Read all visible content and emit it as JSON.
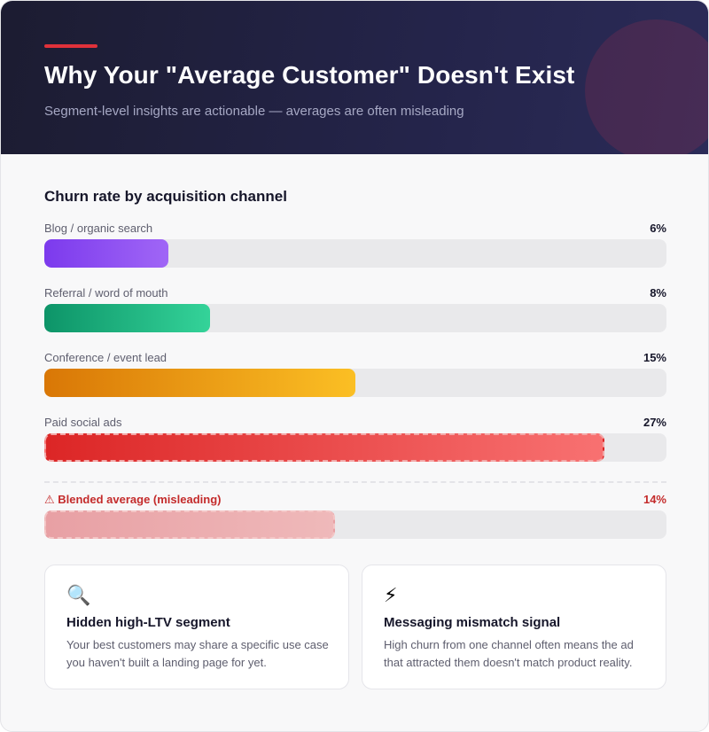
{
  "header": {
    "title": "Why Your \"Average Customer\" Doesn't Exist",
    "subtitle": "Segment-level insights are actionable — averages are often misleading"
  },
  "chart_data": {
    "type": "bar",
    "orientation": "horizontal",
    "title": "Churn rate by acquisition channel",
    "unit": "%",
    "xlim": [
      0,
      30
    ],
    "categories": [
      "Blog / organic search",
      "Referral / word of mouth",
      "Conference / event lead",
      "Paid social ads"
    ],
    "values": [
      6,
      8,
      15,
      27
    ],
    "value_labels": [
      "6%",
      "8%",
      "15%",
      "27%"
    ],
    "colors": [
      "#8b4ef0",
      "#1fb57f",
      "#eca21a",
      "#ec4a4a"
    ],
    "reference": {
      "label": "⚠ Blended average (misleading)",
      "value": 14,
      "value_label": "14%",
      "color": "#eab0b3"
    }
  },
  "insights": [
    {
      "icon": "🔍",
      "icon_name": "magnifier-icon",
      "title": "Hidden high-LTV segment",
      "body": "Your best customers may share a specific use case you haven't built a landing page for yet."
    },
    {
      "icon": "⚡",
      "icon_name": "lightning-icon",
      "title": "Messaging mismatch signal",
      "body": "High churn from one channel often means the ad that attracted them doesn't match product reality."
    }
  ]
}
